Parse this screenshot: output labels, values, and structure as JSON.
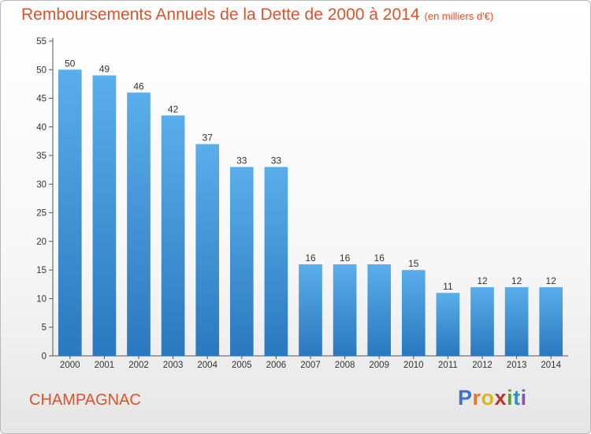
{
  "chart_data": {
    "type": "bar",
    "title": "Remboursements Annuels de la Dette de 2000 à 2014",
    "unit_note": "(en milliers d'€)",
    "categories": [
      "2000",
      "2001",
      "2002",
      "2003",
      "2004",
      "2005",
      "2006",
      "2007",
      "2008",
      "2009",
      "2010",
      "2011",
      "2012",
      "2013",
      "2014"
    ],
    "values": [
      50,
      49,
      46,
      42,
      37,
      33,
      33,
      16,
      16,
      16,
      15,
      11,
      12,
      12,
      12
    ],
    "ylim": [
      0,
      55
    ],
    "yticks": [
      0,
      5,
      10,
      15,
      20,
      25,
      30,
      35,
      40,
      45,
      50,
      55
    ],
    "xlabel": "",
    "ylabel": "",
    "grid": false,
    "bar_color_top": "#5aaeea",
    "bar_color_bottom": "#2a78bf"
  },
  "footer": {
    "commune": "CHAMPAGNAC",
    "logo_letters": [
      "P",
      "r",
      "o",
      "x",
      "i",
      "t",
      "i"
    ],
    "logo_colors": [
      "#3a73c8",
      "#e8772e",
      "#d9b81e",
      "#c0312b",
      "#5aa02c",
      "#2f8fd0",
      "#8e4fb0"
    ]
  }
}
